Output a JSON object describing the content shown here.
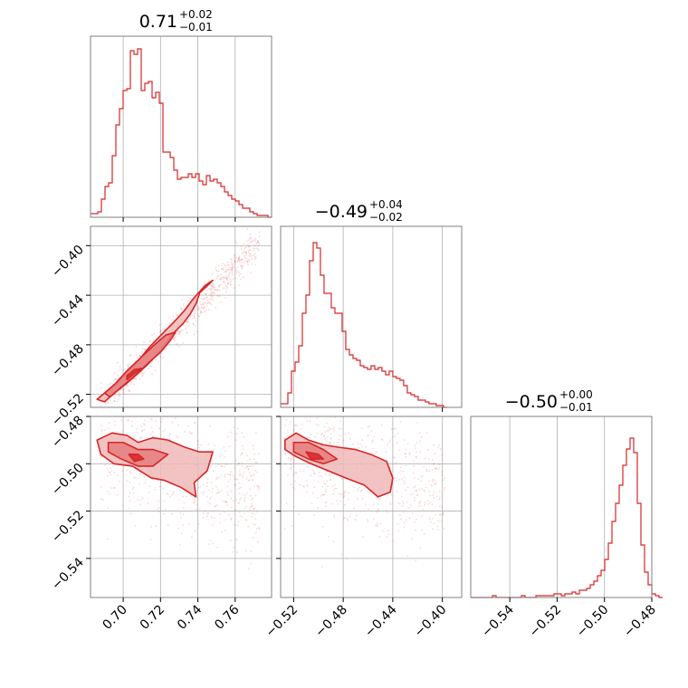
{
  "chart_data": {
    "type": "corner_plot",
    "colors": {
      "series": "#d62728",
      "fill_light": "#f0b8b9",
      "fill_mid": "#e57c7e",
      "grid": "#b0b0b0",
      "spine": "#808080"
    },
    "grid": true,
    "params": [
      {
        "range": [
          0.6825,
          0.7795
        ],
        "ticks": [
          0.7,
          0.72,
          0.74,
          0.76
        ],
        "tick_labels": [
          "0.70",
          "0.72",
          "0.74",
          "0.76"
        ]
      },
      {
        "range": [
          -0.5305,
          -0.3844
        ],
        "ticks": [
          -0.52,
          -0.48,
          -0.44,
          -0.4
        ],
        "tick_labels": [
          "−0.52",
          "−0.48",
          "−0.44",
          "−0.40"
        ]
      },
      {
        "range": [
          -0.5565,
          -0.48
        ],
        "ticks": [
          -0.54,
          -0.52,
          -0.5,
          -0.48
        ],
        "tick_labels": [
          "−0.54",
          "−0.52",
          "−0.50",
          "−0.48"
        ]
      }
    ],
    "titles": [
      {
        "median": "0.71",
        "plus": "+0.02",
        "minus": "−0.01"
      },
      {
        "median": "−0.49",
        "plus": "+0.04",
        "minus": "−0.02"
      },
      {
        "median": "−0.50",
        "plus": "+0.00",
        "minus": "−0.01"
      }
    ],
    "histograms": [
      {
        "x_start": 0.6825,
        "bin_width": 0.00194,
        "values": [
          0.02,
          0.02,
          0.03,
          0.1,
          0.17,
          0.19,
          0.34,
          0.51,
          0.6,
          0.7,
          0.71,
          0.92,
          0.9,
          0.93,
          0.7,
          0.74,
          0.75,
          0.66,
          0.69,
          0.63,
          0.36,
          0.36,
          0.33,
          0.26,
          0.21,
          0.22,
          0.22,
          0.24,
          0.22,
          0.24,
          0.2,
          0.18,
          0.23,
          0.2,
          0.21,
          0.19,
          0.17,
          0.14,
          0.12,
          0.1,
          0.09,
          0.07,
          0.05,
          0.05,
          0.03,
          0.02,
          0.01,
          0.01,
          0.01,
          0.0
        ]
      },
      {
        "x_start": -0.5305,
        "bin_width": 0.00292,
        "values": [
          0.02,
          0.02,
          0.08,
          0.2,
          0.25,
          0.34,
          0.52,
          0.62,
          0.81,
          0.91,
          0.88,
          0.73,
          0.63,
          0.63,
          0.55,
          0.52,
          0.52,
          0.42,
          0.32,
          0.29,
          0.27,
          0.26,
          0.23,
          0.22,
          0.21,
          0.23,
          0.21,
          0.22,
          0.2,
          0.18,
          0.2,
          0.17,
          0.16,
          0.15,
          0.12,
          0.08,
          0.07,
          0.06,
          0.04,
          0.04,
          0.03,
          0.02,
          0.02,
          0.01,
          0.01,
          0.0
        ]
      },
      {
        "x_start": -0.5565,
        "bin_width": 0.00153,
        "values": [
          0.0,
          0.0,
          0.0,
          0.0,
          0.0,
          0.0,
          0.01,
          0.0,
          0.0,
          0.0,
          0.0,
          0.0,
          0.0,
          0.0,
          0.01,
          0.0,
          0.0,
          0.0,
          0.01,
          0.01,
          0.01,
          0.01,
          0.01,
          0.02,
          0.02,
          0.01,
          0.02,
          0.02,
          0.03,
          0.02,
          0.04,
          0.04,
          0.05,
          0.07,
          0.09,
          0.12,
          0.15,
          0.21,
          0.3,
          0.42,
          0.52,
          0.62,
          0.73,
          0.82,
          0.88,
          0.8,
          0.52,
          0.29,
          0.14,
          0.07,
          0.02,
          0.01,
          0.0
        ]
      }
    ],
    "joint_contours": {
      "p1_p0": [
        {
          "level": "outer",
          "path": [
            [
              0.69,
              -0.526
            ],
            [
              0.696,
              -0.518
            ],
            [
              0.702,
              -0.511
            ],
            [
              0.708,
              -0.503
            ],
            [
              0.713,
              -0.496
            ],
            [
              0.718,
              -0.488
            ],
            [
              0.722,
              -0.481
            ],
            [
              0.726,
              -0.472
            ],
            [
              0.732,
              -0.463
            ],
            [
              0.736,
              -0.455
            ],
            [
              0.739,
              -0.447
            ],
            [
              0.741,
              -0.438
            ],
            [
              0.746,
              -0.431
            ],
            [
              0.748,
              -0.428
            ],
            [
              0.744,
              -0.432
            ],
            [
              0.738,
              -0.442
            ],
            [
              0.733,
              -0.452
            ],
            [
              0.727,
              -0.462
            ],
            [
              0.721,
              -0.471
            ],
            [
              0.714,
              -0.482
            ],
            [
              0.708,
              -0.493
            ],
            [
              0.702,
              -0.502
            ],
            [
              0.696,
              -0.512
            ],
            [
              0.69,
              -0.519
            ],
            [
              0.686,
              -0.524
            ]
          ]
        },
        {
          "level": "inner",
          "path": [
            [
              0.693,
              -0.522
            ],
            [
              0.7,
              -0.513
            ],
            [
              0.707,
              -0.504
            ],
            [
              0.714,
              -0.494
            ],
            [
              0.72,
              -0.486
            ],
            [
              0.725,
              -0.477
            ],
            [
              0.728,
              -0.47
            ],
            [
              0.723,
              -0.472
            ],
            [
              0.716,
              -0.481
            ],
            [
              0.709,
              -0.491
            ],
            [
              0.702,
              -0.501
            ],
            [
              0.696,
              -0.511
            ],
            [
              0.69,
              -0.519
            ]
          ]
        },
        {
          "level": "core",
          "path": [
            [
              0.702,
              -0.508
            ],
            [
              0.707,
              -0.502
            ],
            [
              0.71,
              -0.499
            ],
            [
              0.706,
              -0.5
            ],
            [
              0.702,
              -0.505
            ]
          ]
        }
      ],
      "p2_p0": [
        {
          "level": "outer",
          "path": [
            [
              0.686,
              -0.49
            ],
            [
              0.694,
              -0.487
            ],
            [
              0.702,
              -0.488
            ],
            [
              0.708,
              -0.491
            ],
            [
              0.716,
              -0.489
            ],
            [
              0.724,
              -0.49
            ],
            [
              0.733,
              -0.493
            ],
            [
              0.741,
              -0.495
            ],
            [
              0.748,
              -0.495
            ],
            [
              0.745,
              -0.503
            ],
            [
              0.738,
              -0.508
            ],
            [
              0.739,
              -0.514
            ],
            [
              0.731,
              -0.51
            ],
            [
              0.722,
              -0.507
            ],
            [
              0.715,
              -0.506
            ],
            [
              0.705,
              -0.501
            ],
            [
              0.695,
              -0.5
            ],
            [
              0.688,
              -0.496
            ]
          ]
        },
        {
          "level": "inner",
          "path": [
            [
              0.692,
              -0.491
            ],
            [
              0.7,
              -0.491
            ],
            [
              0.708,
              -0.494
            ],
            [
              0.716,
              -0.494
            ],
            [
              0.724,
              -0.496
            ],
            [
              0.716,
              -0.501
            ],
            [
              0.708,
              -0.501
            ],
            [
              0.699,
              -0.498
            ],
            [
              0.692,
              -0.495
            ]
          ]
        },
        {
          "level": "core",
          "path": [
            [
              0.703,
              -0.496
            ],
            [
              0.708,
              -0.496
            ],
            [
              0.711,
              -0.498
            ],
            [
              0.706,
              -0.499
            ]
          ]
        }
      ],
      "p2_p1": [
        {
          "level": "outer",
          "path": [
            [
              -0.527,
              -0.49
            ],
            [
              -0.518,
              -0.487
            ],
            [
              -0.508,
              -0.49
            ],
            [
              -0.496,
              -0.492
            ],
            [
              -0.484,
              -0.493
            ],
            [
              -0.47,
              -0.494
            ],
            [
              -0.458,
              -0.496
            ],
            [
              -0.445,
              -0.499
            ],
            [
              -0.44,
              -0.506
            ],
            [
              -0.442,
              -0.512
            ],
            [
              -0.452,
              -0.514
            ],
            [
              -0.463,
              -0.509
            ],
            [
              -0.478,
              -0.506
            ],
            [
              -0.492,
              -0.503
            ],
            [
              -0.506,
              -0.5
            ],
            [
              -0.518,
              -0.497
            ],
            [
              -0.527,
              -0.494
            ]
          ]
        },
        {
          "level": "inner",
          "path": [
            [
              -0.52,
              -0.491
            ],
            [
              -0.508,
              -0.491
            ],
            [
              -0.496,
              -0.494
            ],
            [
              -0.485,
              -0.498
            ],
            [
              -0.496,
              -0.5
            ],
            [
              -0.508,
              -0.498
            ],
            [
              -0.52,
              -0.495
            ]
          ]
        },
        {
          "level": "core",
          "path": [
            [
              -0.51,
              -0.495
            ],
            [
              -0.5,
              -0.496
            ],
            [
              -0.496,
              -0.498
            ],
            [
              -0.506,
              -0.498
            ]
          ]
        }
      ]
    }
  }
}
